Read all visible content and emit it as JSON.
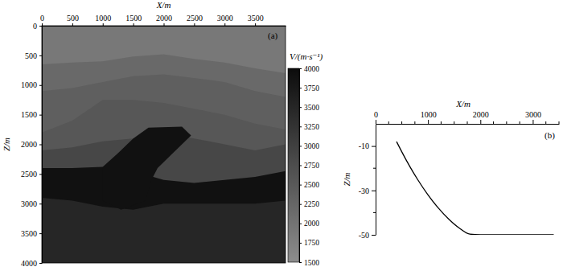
{
  "chart_data": [
    {
      "type": "velocity_model",
      "x_label": "X/m",
      "y_label": "Z/m",
      "annotation": "(a)",
      "xlim": [
        0,
        4000
      ],
      "xticks": [
        0,
        500,
        1000,
        1500,
        2000,
        2500,
        3000,
        3500
      ],
      "ylim": [
        0,
        4000
      ],
      "yticks": [
        0,
        500,
        1000,
        1500,
        2000,
        2500,
        3000,
        3500,
        4000
      ],
      "x": [
        0,
        500,
        1000,
        1500,
        2000,
        2500,
        3000,
        3500,
        4000
      ],
      "series": [
        {
          "velocity": 1900,
          "values": [
            0,
            0,
            0,
            0,
            0,
            0,
            0,
            0,
            0
          ]
        },
        {
          "velocity": 2200,
          "values": [
            650,
            620,
            600,
            520,
            480,
            560,
            620,
            720,
            800
          ]
        },
        {
          "velocity": 2400,
          "values": [
            1100,
            1050,
            950,
            850,
            820,
            880,
            950,
            1100,
            1200
          ]
        },
        {
          "velocity": 2550,
          "values": [
            1800,
            1600,
            1250,
            1250,
            1300,
            1400,
            1500,
            1650,
            1750
          ]
        },
        {
          "velocity": 2850,
          "values": [
            2100,
            2050,
            1950,
            1900,
            1800,
            1900,
            2000,
            2100,
            2000
          ]
        },
        {
          "velocity": 3900,
          "values": [
            2400,
            2400,
            2380,
            2450,
            2600,
            2650,
            2600,
            2550,
            2450
          ]
        },
        {
          "velocity": 3500,
          "values": [
            2900,
            2950,
            3050,
            3100,
            3000,
            3000,
            3000,
            3000,
            2950
          ]
        }
      ],
      "bodies": [
        {
          "velocity": 3900,
          "x": [
            1000,
            1250,
            1500,
            1750,
            2300,
            2450,
            2150,
            1900,
            1800,
            1700,
            1300,
            1000
          ],
          "values": [
            2380,
            2150,
            1900,
            1720,
            1700,
            1850,
            2150,
            2400,
            2600,
            2950,
            3100,
            2950
          ]
        }
      ],
      "colorbar": {
        "label": "V/(m·s⁻¹)",
        "range": [
          1500,
          4000
        ],
        "ticks": [
          1500,
          1750,
          2000,
          2250,
          2500,
          2750,
          3000,
          3250,
          3500,
          3750,
          4000
        ]
      }
    },
    {
      "type": "line",
      "x_label": "X/m",
      "y_label": "Z/m",
      "annotation": "(b)",
      "xlim": [
        0,
        3500
      ],
      "xticks": [
        0,
        1000,
        2000,
        3000
      ],
      "minor_xticks": [
        250,
        500,
        750,
        1250,
        1500,
        1750,
        2250,
        2500,
        2750,
        3250,
        3500
      ],
      "ylim": [
        -50,
        0
      ],
      "yticks": [
        -10,
        -30,
        -50
      ],
      "minor_yticks": [
        -20,
        -40
      ],
      "x": [
        400,
        600,
        800,
        1000,
        1200,
        1400,
        1600,
        1800,
        2000,
        2500,
        3000,
        3400
      ],
      "values": [
        -8,
        -17,
        -25,
        -32,
        -38,
        -43,
        -47,
        -49.7,
        -50,
        -50,
        -50,
        -50
      ],
      "color": "#000000"
    }
  ]
}
